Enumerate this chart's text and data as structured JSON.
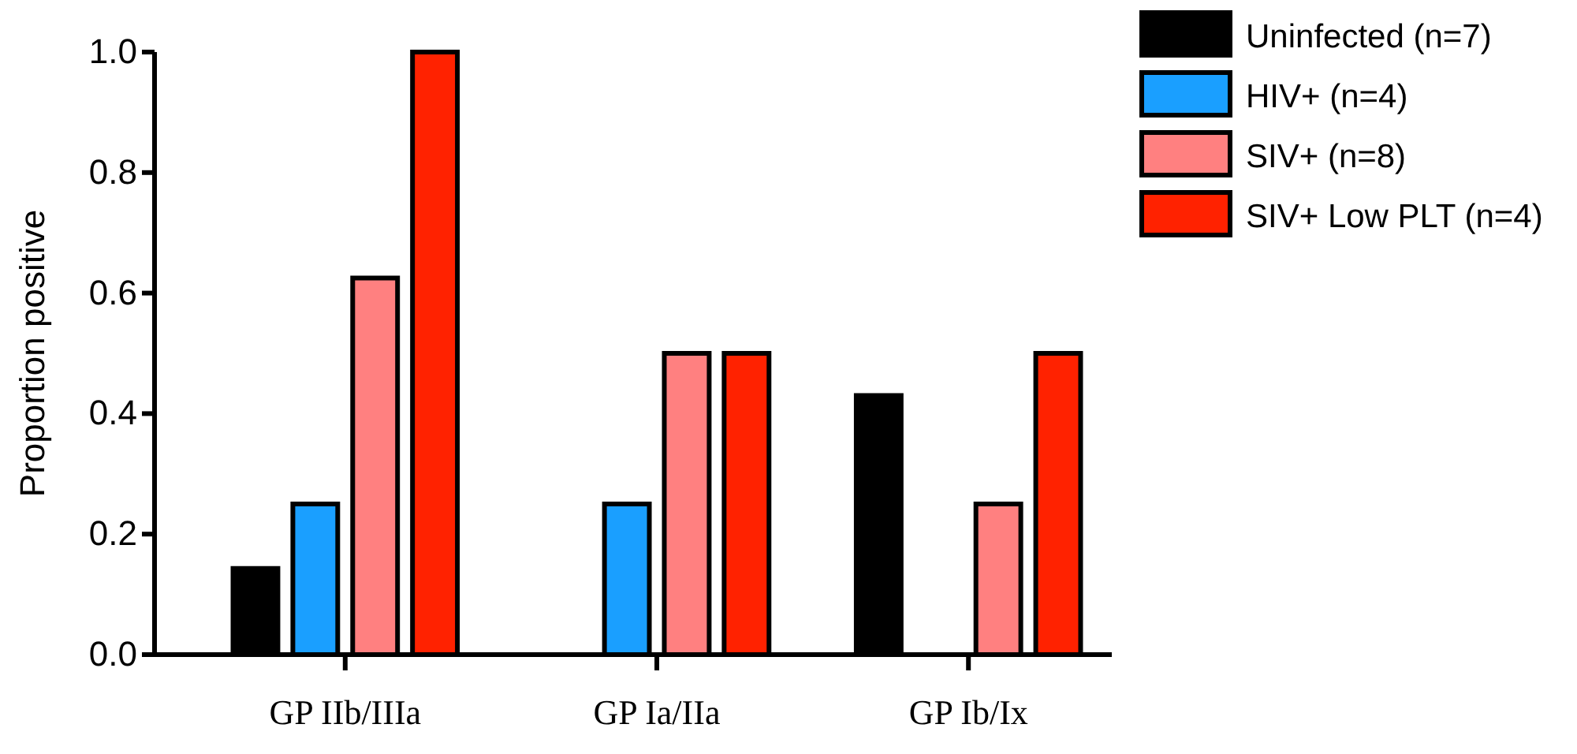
{
  "chart_data": {
    "type": "bar",
    "ylabel": "Proportion positive",
    "categories": [
      "GP IIb/IIIa",
      "GP Ia/IIa",
      "GP Ib/Ix"
    ],
    "series": [
      {
        "name": "Uninfected (n=7)",
        "color": "#000000",
        "values": [
          0.143,
          0,
          0.43
        ]
      },
      {
        "name": "HIV+ (n=4)",
        "color": "#1a9fff",
        "values": [
          0.25,
          0.25,
          0
        ]
      },
      {
        "name": "SIV+ (n=8)",
        "color": "#ff8080",
        "values": [
          0.625,
          0.5,
          0.25
        ]
      },
      {
        "name": "SIV+ Low PLT (n=4)",
        "color": "#ff2200",
        "values": [
          1.0,
          0.5,
          0.5
        ]
      }
    ],
    "ylim": [
      0,
      1.0
    ],
    "yticks": [
      {
        "value": 0,
        "label": "0.0"
      },
      {
        "value": 0.2,
        "label": "0.2"
      },
      {
        "value": 0.4,
        "label": "0.4"
      },
      {
        "value": 0.6,
        "label": "0.6"
      },
      {
        "value": 0.8,
        "label": "0.8"
      },
      {
        "value": 1.0,
        "label": "1.0"
      }
    ],
    "legend": "top right"
  }
}
